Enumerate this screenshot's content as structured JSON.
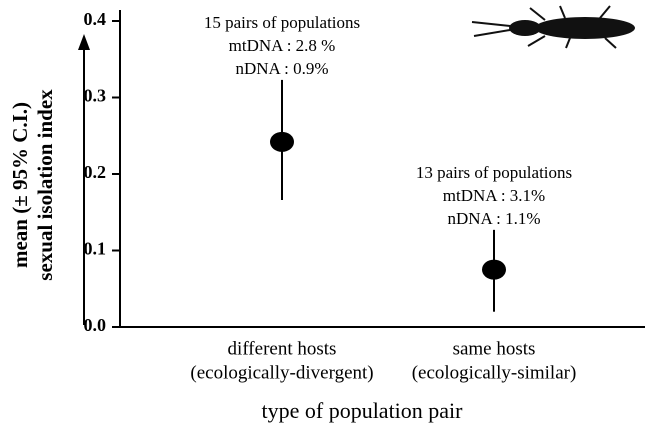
{
  "chart_data": {
    "type": "errorpoint",
    "ylabel": [
      "mean (± 95% C.I.)",
      "sexual isolation index"
    ],
    "xlabel": "type of population pair",
    "categories": [
      [
        "different hosts",
        "(ecologically-divergent)"
      ],
      [
        "same hosts",
        "(ecologically-similar)"
      ]
    ],
    "series": [
      {
        "color": "#000000",
        "values": [
          0.242,
          0.075
        ],
        "lower": [
          0.166,
          0.02
        ],
        "upper": [
          0.323,
          0.127
        ]
      }
    ],
    "annotations": [
      [
        "15 pairs of populations",
        "mtDNA : 2.8 %",
        "nDNA : 0.9%"
      ],
      [
        "13 pairs of populations",
        "mtDNA : 3.1%",
        "nDNA : 1.1%"
      ]
    ],
    "ylim": [
      0,
      0.4
    ],
    "yticks": [
      {
        "value": 0,
        "label": "0.0"
      },
      0.1,
      0.2,
      0.3,
      0.4
    ]
  }
}
